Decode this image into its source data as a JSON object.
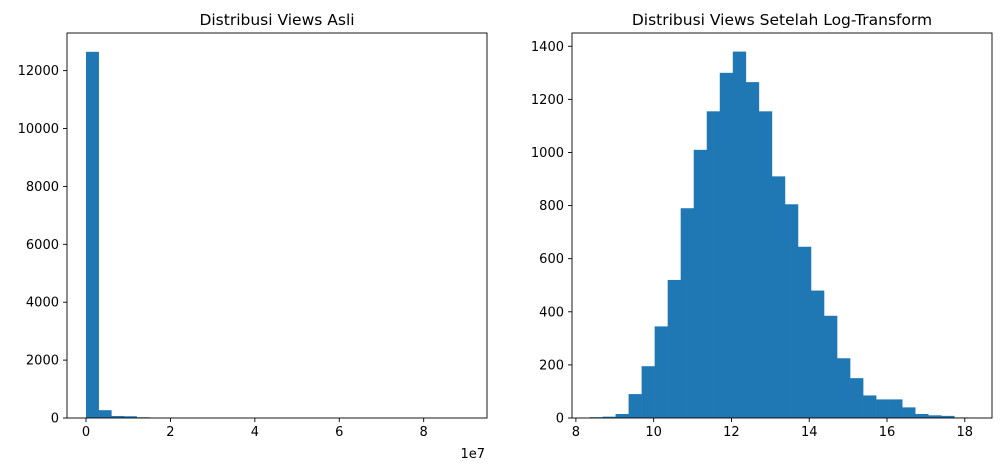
{
  "colors": {
    "bar": "#1f77b4",
    "axes": "#000000",
    "background": "#ffffff"
  },
  "chart_data": [
    {
      "type": "bar",
      "title": "Distribusi Views Asli",
      "xlabel": "",
      "ylabel": "",
      "x_offset_label": "1e7",
      "xlim": [
        -0.45,
        9.5
      ],
      "ylim": [
        0,
        13300
      ],
      "x_ticks": [
        0,
        2,
        4,
        6,
        8
      ],
      "x_tick_labels": [
        "0",
        "2",
        "4",
        "6",
        "8"
      ],
      "y_ticks": [
        0,
        2000,
        4000,
        6000,
        8000,
        10000,
        12000
      ],
      "y_tick_labels": [
        "0",
        "2000",
        "4000",
        "6000",
        "8000",
        "10000",
        "12000"
      ],
      "bin_start": 0,
      "bin_width": 0.3,
      "values": [
        12650,
        270,
        70,
        60,
        25,
        8,
        4,
        3,
        2,
        2,
        1,
        1,
        1,
        1,
        1,
        1,
        1,
        1,
        1,
        1,
        1,
        1,
        1,
        1,
        1,
        1,
        1,
        1,
        1,
        1
      ],
      "grid": false,
      "legend": "none"
    },
    {
      "type": "bar",
      "title": "Distribusi Views Setelah Log-Transform",
      "xlabel": "",
      "ylabel": "",
      "xlim": [
        7.9,
        18.7
      ],
      "ylim": [
        0,
        1450
      ],
      "x_ticks": [
        8,
        10,
        12,
        14,
        16,
        18
      ],
      "x_tick_labels": [
        "8",
        "10",
        "12",
        "14",
        "16",
        "18"
      ],
      "y_ticks": [
        0,
        200,
        400,
        600,
        800,
        1000,
        1200,
        1400
      ],
      "y_tick_labels": [
        "0",
        "200",
        "400",
        "600",
        "800",
        "1000",
        "1200",
        "1400"
      ],
      "bin_start": 8.35,
      "bin_width": 0.335,
      "values": [
        3,
        5,
        15,
        90,
        195,
        345,
        520,
        790,
        1010,
        1155,
        1300,
        1380,
        1265,
        1155,
        910,
        805,
        645,
        480,
        385,
        225,
        150,
        85,
        70,
        70,
        40,
        15,
        10,
        8,
        2,
        1
      ],
      "grid": false,
      "legend": "none"
    }
  ]
}
